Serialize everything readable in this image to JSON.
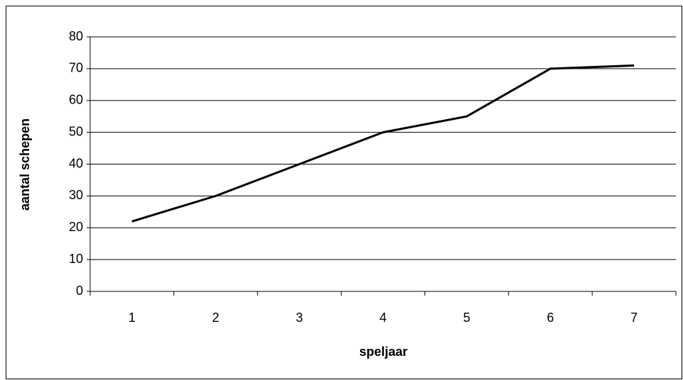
{
  "chart_data": {
    "type": "line",
    "x_label": "speljaar",
    "y_label": "aantal schepen",
    "categories": [
      "1",
      "2",
      "3",
      "4",
      "5",
      "6",
      "7"
    ],
    "values": [
      22,
      30,
      40,
      50,
      55,
      70,
      71
    ],
    "color": "#000000",
    "ylim": [
      0,
      80
    ],
    "yticks": [
      0,
      10,
      20,
      30,
      40,
      50,
      60,
      70,
      80
    ],
    "grid": true
  }
}
